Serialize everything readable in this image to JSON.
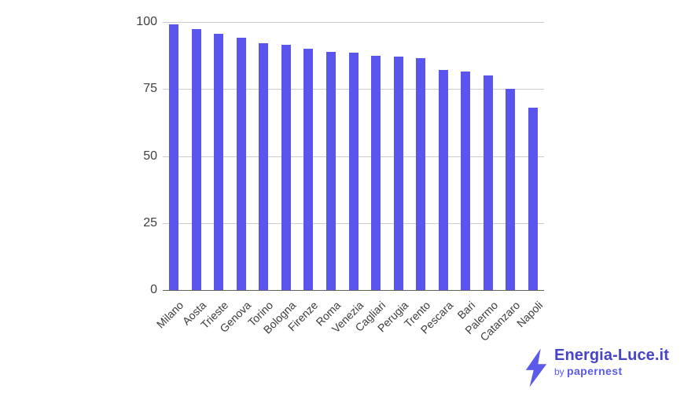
{
  "chart_data": {
    "type": "bar",
    "title": "",
    "categories": [
      "Milano",
      "Aosta",
      "Trieste",
      "Genova",
      "Torino",
      "Bologna",
      "Firenze",
      "Roma",
      "Venezia",
      "Cagliari",
      "Perugia",
      "Trento",
      "Pescara",
      "Bari",
      "Palermo",
      "Catanzaro",
      "Napoli"
    ],
    "values": [
      99,
      97.5,
      95.5,
      94,
      92,
      91.5,
      90,
      89,
      88.5,
      87.5,
      87,
      86.5,
      82,
      81.5,
      80,
      75,
      68
    ],
    "xlabel": "",
    "ylabel": "",
    "ylim": [
      0,
      100
    ],
    "yticks": [
      0,
      25,
      50,
      75,
      100
    ],
    "grid": true,
    "legend_position": "none",
    "label_rotation_deg": -45,
    "bar_color": "#5A55EC",
    "grid_color": "#CCCCCC",
    "baseline_color": "#616161",
    "tick_label_color": "#404040",
    "category_label_color": "#3D3D3D"
  },
  "branding": {
    "lightning_bolt_icon": "lightning-bolt-icon",
    "logo_title": "Energia-Luce.it",
    "logo_by": "by",
    "logo_brand": "papernest",
    "logo_title_color": "#4744C6",
    "logo_accent_color": "#5B5AE9"
  }
}
